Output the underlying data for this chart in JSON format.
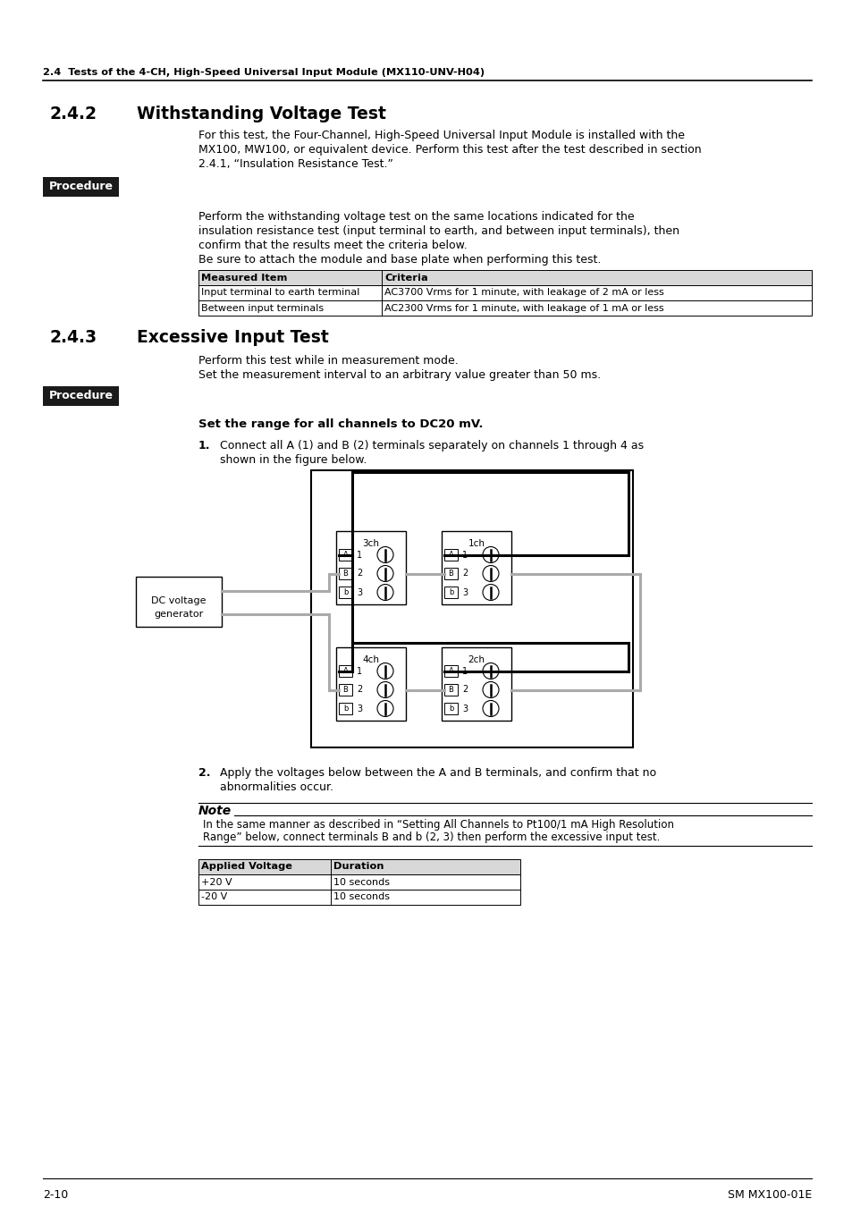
{
  "page_bg": "#ffffff",
  "header_line_text": "2.4  Tests of the 4-CH, High-Speed Universal Input Module (MX110-UNV-H04)",
  "section_242_num": "2.4.2",
  "section_242_title": "Withstanding Voltage Test",
  "section_242_body1": "For this test, the Four-Channel, High-Speed Universal Input Module is installed with the",
  "section_242_body2": "MX100, MW100, or equivalent device. Perform this test after the test described in section",
  "section_242_body3": "2.4.1, “Insulation Resistance Test.”",
  "procedure_bg": "#1a1a1a",
  "procedure_text": "Procedure",
  "proc1_line1": "Perform the withstanding voltage test on the same locations indicated for the",
  "proc1_line2": "insulation resistance test (input terminal to earth, and between input terminals), then",
  "proc1_line3": "confirm that the results meet the criteria below.",
  "proc1_line4": "Be sure to attach the module and base plate when performing this test.",
  "table1_headers": [
    "Measured Item",
    "Criteria"
  ],
  "table1_rows": [
    [
      "Input terminal to earth terminal",
      "AC3700 Vrms for 1 minute, with leakage of 2 mA or less"
    ],
    [
      "Between input terminals",
      "AC2300 Vrms for 1 minute, with leakage of 1 mA or less"
    ]
  ],
  "section_243_num": "2.4.3",
  "section_243_title": "Excessive Input Test",
  "section_243_body1": "Perform this test while in measurement mode.",
  "section_243_body2": "Set the measurement interval to an arbitrary value greater than 50 ms.",
  "set_range_title": "Set the range for all channels to DC20 mV.",
  "step1_num": "1.",
  "step1_text": "Connect all A (1) and B (2) terminals separately on channels 1 through 4 as",
  "step1_text2": "shown in the figure below.",
  "step2_num": "2.",
  "step2_text": "Apply the voltages below between the A and B terminals, and confirm that no",
  "step2_text2": "abnormalities occur.",
  "note_title": "Note",
  "note_line1": "In the same manner as described in “Setting All Channels to Pt100/1 mA High Resolution",
  "note_line2": "Range” below, connect terminals B and b (2, 3) then perform the excessive input test.",
  "table2_headers": [
    "Applied Voltage",
    "Duration"
  ],
  "table2_rows": [
    [
      "+20 V",
      "10 seconds"
    ],
    [
      "-20 V",
      "10 seconds"
    ]
  ],
  "footer_left": "2-10",
  "footer_right": "SM MX100-01E",
  "gray_color": "#aaaaaa",
  "black_color": "#000000"
}
